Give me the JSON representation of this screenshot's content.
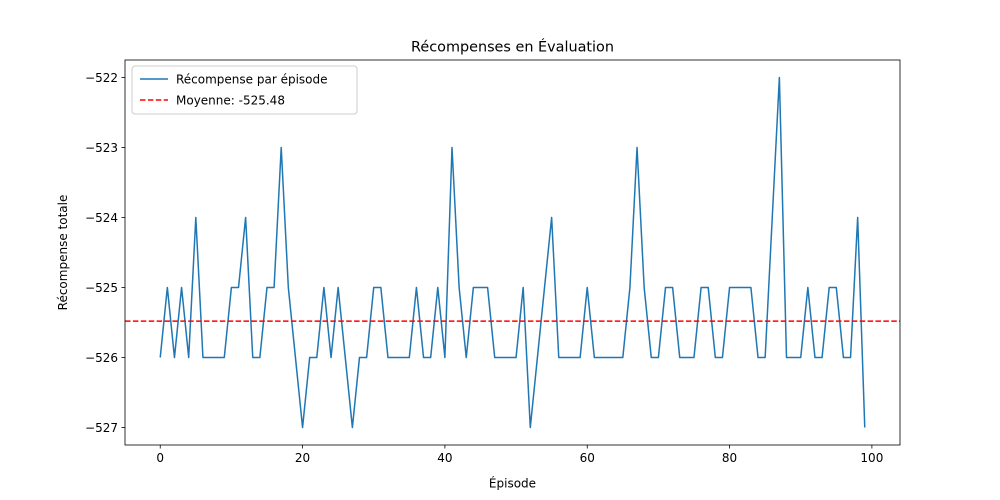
{
  "chart_data": {
    "type": "line",
    "title": "Récompenses en Évaluation",
    "xlabel": "Épisode",
    "ylabel": "Récompense totale",
    "xlim": [
      -4.95,
      103.95
    ],
    "ylim": [
      -527.25,
      -521.75
    ],
    "xticks": [
      0,
      20,
      40,
      60,
      80,
      100
    ],
    "yticks": [
      -522,
      -523,
      -524,
      -525,
      -526,
      -527
    ],
    "ytick_labels": [
      "−522",
      "−523",
      "−524",
      "−525",
      "−526",
      "−527"
    ],
    "grid": false,
    "legend_position": "upper-left",
    "series": [
      {
        "name": "Récompense par épisode",
        "color": "#1f77b4",
        "style": "solid",
        "x": [
          0,
          1,
          2,
          3,
          4,
          5,
          6,
          7,
          8,
          9,
          10,
          11,
          12,
          13,
          14,
          15,
          16,
          17,
          18,
          19,
          20,
          21,
          22,
          23,
          24,
          25,
          26,
          27,
          28,
          29,
          30,
          31,
          32,
          33,
          34,
          35,
          36,
          37,
          38,
          39,
          40,
          41,
          42,
          43,
          44,
          45,
          46,
          47,
          48,
          49,
          50,
          51,
          52,
          53,
          54,
          55,
          56,
          57,
          58,
          59,
          60,
          61,
          62,
          63,
          64,
          65,
          66,
          67,
          68,
          69,
          70,
          71,
          72,
          73,
          74,
          75,
          76,
          77,
          78,
          79,
          80,
          81,
          82,
          83,
          84,
          85,
          86,
          87,
          88,
          89,
          90,
          91,
          92,
          93,
          94,
          95,
          96,
          97,
          98,
          99
        ],
        "y": [
          -526,
          -525,
          -526,
          -525,
          -526,
          -524,
          -526,
          -526,
          -526,
          -526,
          -525,
          -525,
          -524,
          -526,
          -526,
          -525,
          -525,
          -523,
          -525,
          -526,
          -527,
          -526,
          -526,
          -525,
          -526,
          -525,
          -526,
          -527,
          -526,
          -526,
          -525,
          -525,
          -526,
          -526,
          -526,
          -526,
          -525,
          -526,
          -526,
          -525,
          -526,
          -523,
          -525,
          -526,
          -525,
          -525,
          -525,
          -526,
          -526,
          -526,
          -526,
          -525,
          -527,
          -526,
          -525,
          -524,
          -526,
          -526,
          -526,
          -526,
          -525,
          -526,
          -526,
          -526,
          -526,
          -526,
          -525,
          -523,
          -525,
          -526,
          -526,
          -525,
          -525,
          -526,
          -526,
          -526,
          -525,
          -525,
          -526,
          -526,
          -525,
          -525,
          -525,
          -525,
          -526,
          -526,
          -524,
          -522,
          -526,
          -526,
          -526,
          -525,
          -526,
          -526,
          -525,
          -525,
          -526,
          -526,
          -524,
          -527
        ]
      },
      {
        "name": "Moyenne: -525.48",
        "color": "#ff0000",
        "style": "dashed",
        "y_constant": -525.48
      }
    ]
  }
}
